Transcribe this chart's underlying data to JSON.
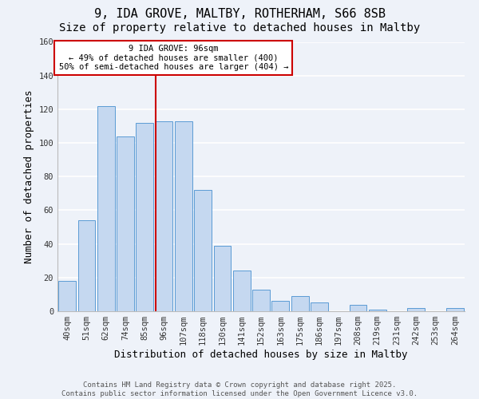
{
  "title": "9, IDA GROVE, MALTBY, ROTHERHAM, S66 8SB",
  "subtitle": "Size of property relative to detached houses in Maltby",
  "xlabel": "Distribution of detached houses by size in Maltby",
  "ylabel": "Number of detached properties",
  "categories": [
    "40sqm",
    "51sqm",
    "62sqm",
    "74sqm",
    "85sqm",
    "96sqm",
    "107sqm",
    "118sqm",
    "130sqm",
    "141sqm",
    "152sqm",
    "163sqm",
    "175sqm",
    "186sqm",
    "197sqm",
    "208sqm",
    "219sqm",
    "231sqm",
    "242sqm",
    "253sqm",
    "264sqm"
  ],
  "values": [
    18,
    54,
    122,
    104,
    112,
    113,
    113,
    72,
    39,
    24,
    13,
    6,
    9,
    5,
    0,
    4,
    1,
    0,
    2,
    0,
    2
  ],
  "bar_color": "#c5d8f0",
  "bar_edge_color": "#5b9bd5",
  "vline_x_index": 5,
  "vline_color": "#cc0000",
  "annotation_title": "9 IDA GROVE: 96sqm",
  "annotation_line1": "← 49% of detached houses are smaller (400)",
  "annotation_line2": "50% of semi-detached houses are larger (404) →",
  "annotation_box_color": "#ffffff",
  "annotation_box_edge_color": "#cc0000",
  "ylim": [
    0,
    160
  ],
  "yticks": [
    0,
    20,
    40,
    60,
    80,
    100,
    120,
    140,
    160
  ],
  "footer1": "Contains HM Land Registry data © Crown copyright and database right 2025.",
  "footer2": "Contains public sector information licensed under the Open Government Licence v3.0.",
  "background_color": "#eef2f9",
  "grid_color": "#ffffff",
  "title_fontsize": 11,
  "subtitle_fontsize": 10,
  "tick_fontsize": 7.5,
  "footer_fontsize": 6.5
}
